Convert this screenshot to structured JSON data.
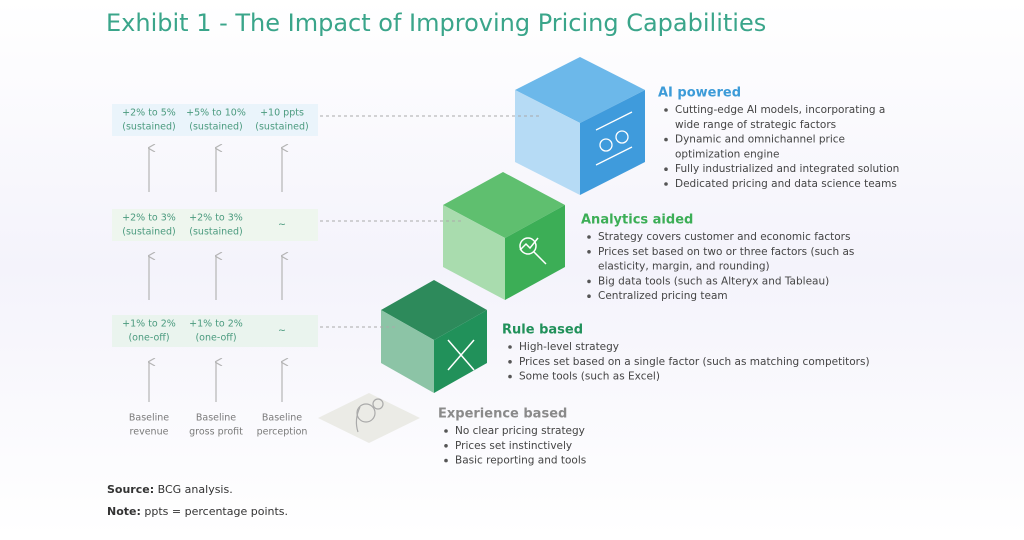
{
  "title": "Exhibit 1 - The Impact of Improving Pricing Capabilities",
  "metric_rows": [
    {
      "cells": [
        [
          "+2% to 5%",
          "(sustained)"
        ],
        [
          "+5% to 10%",
          "(sustained)"
        ],
        [
          "+10 ppts",
          "(sustained)"
        ]
      ]
    },
    {
      "cells": [
        [
          "+2% to 3%",
          "(sustained)"
        ],
        [
          "+2% to 3%",
          "(sustained)"
        ],
        [
          "~"
        ]
      ]
    },
    {
      "cells": [
        [
          "+1% to 2%",
          "(one-off)"
        ],
        [
          "+1% to 2%",
          "(one-off)"
        ],
        [
          "~"
        ]
      ]
    }
  ],
  "baselines": [
    [
      "Baseline",
      "revenue"
    ],
    [
      "Baseline",
      "gross profit"
    ],
    [
      "Baseline",
      "perception"
    ]
  ],
  "tiers": [
    {
      "name": "AI powered",
      "bullets": [
        [
          "Cutting-edge AI models, incorporating a",
          "wide range of strategic factors"
        ],
        [
          "Dynamic and omnichannel price",
          "optimization engine"
        ],
        [
          "Fully industrialized and integrated solution"
        ],
        [
          "Dedicated pricing and data science teams"
        ]
      ]
    },
    {
      "name": "Analytics aided",
      "bullets": [
        [
          "Strategy covers customer and economic factors"
        ],
        [
          "Prices set based on two or three factors (such as",
          "elasticity, margin, and rounding)"
        ],
        [
          "Big data tools (such as Alteryx and Tableau)"
        ],
        [
          "Centralized pricing team"
        ]
      ]
    },
    {
      "name": "Rule based",
      "bullets": [
        [
          "High-level strategy"
        ],
        [
          "Prices set based on a single factor (such as matching competitors)"
        ],
        [
          "Some tools (such as Excel)"
        ]
      ]
    },
    {
      "name": "Experience based",
      "bullets": [
        [
          "No clear pricing strategy"
        ],
        [
          "Prices set instinctively"
        ],
        [
          "Basic reporting and tools"
        ]
      ]
    }
  ],
  "source": {
    "label": "Source:",
    "text": "BCG analysis."
  },
  "note": {
    "label": "Note:",
    "text": "ppts = percentage points."
  }
}
